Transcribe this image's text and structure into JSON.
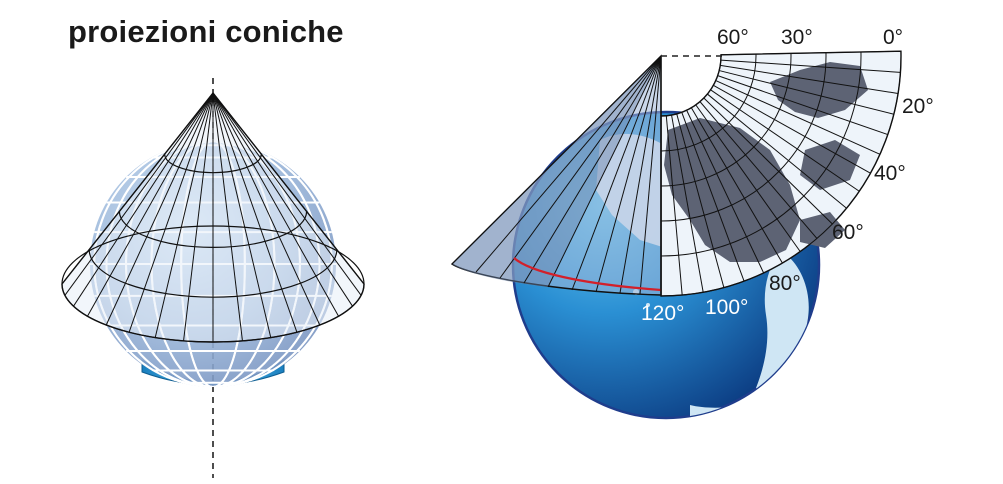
{
  "title": "proiezioni coniche",
  "top_longitudes": [
    "60°",
    "30°",
    "0°"
  ],
  "right_latitudes": [
    "20°",
    "40°",
    "60°",
    "80°"
  ],
  "bottom_longitudes": [
    "120°",
    "100°"
  ],
  "colors": {
    "ocean_light": "#5fc3ef",
    "ocean_dark": "#0d3f86",
    "land": "#5d6374",
    "cone_fill": "#e9eef6",
    "red_line": "#d3202a",
    "globe_outline": "#1f3d8c"
  }
}
